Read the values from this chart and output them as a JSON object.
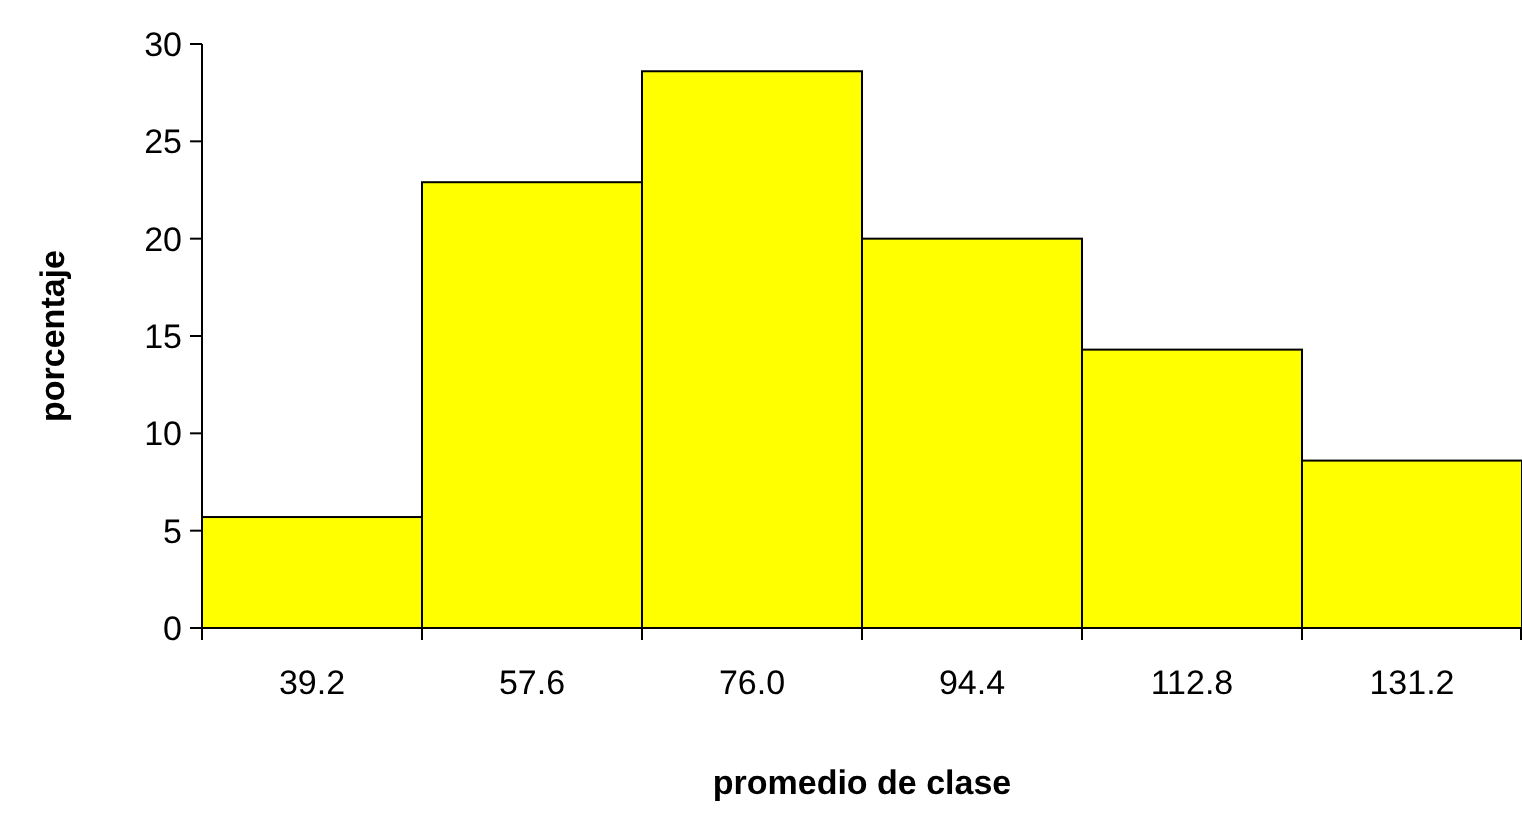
{
  "chart_data": {
    "type": "bar",
    "xlabel": "promedio de clase",
    "ylabel": "porcentaje",
    "categories": [
      "39.2",
      "57.6",
      "76.0",
      "94.4",
      "112.8",
      "131.2"
    ],
    "values": [
      5.7,
      22.9,
      28.6,
      20.0,
      14.3,
      8.6
    ],
    "color": "#ffff00",
    "ylim": [
      0,
      30
    ],
    "yticks": [
      0,
      5,
      10,
      15,
      20,
      25,
      30
    ],
    "grid": false
  }
}
